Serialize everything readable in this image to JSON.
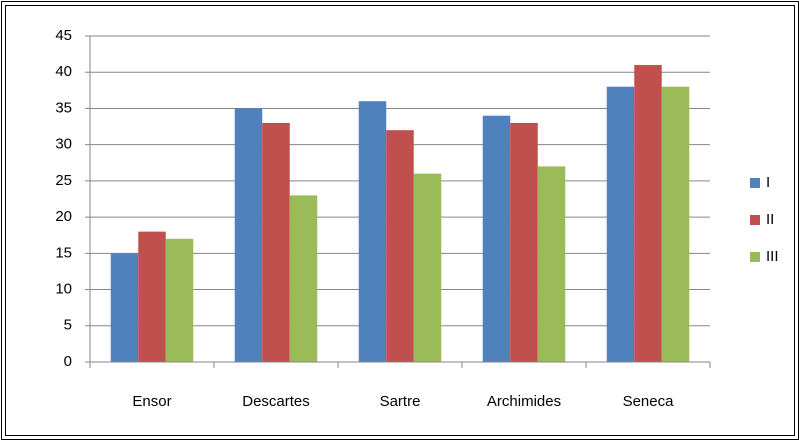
{
  "chart_data": {
    "type": "bar",
    "categories": [
      "Ensor",
      "Descartes",
      "Sartre",
      "Archimides",
      "Seneca"
    ],
    "series": [
      {
        "name": "I",
        "color": "#4f81bd",
        "values": [
          15,
          35,
          36,
          34,
          38
        ]
      },
      {
        "name": "II",
        "color": "#c0504d",
        "values": [
          18,
          33,
          32,
          33,
          41
        ]
      },
      {
        "name": "III",
        "color": "#9bbb59",
        "values": [
          17,
          23,
          26,
          27,
          38
        ]
      }
    ],
    "ylim": [
      0,
      45
    ],
    "yticks": [
      0,
      5,
      10,
      15,
      20,
      25,
      30,
      35,
      40,
      45
    ],
    "grid": true,
    "legend": "right"
  }
}
